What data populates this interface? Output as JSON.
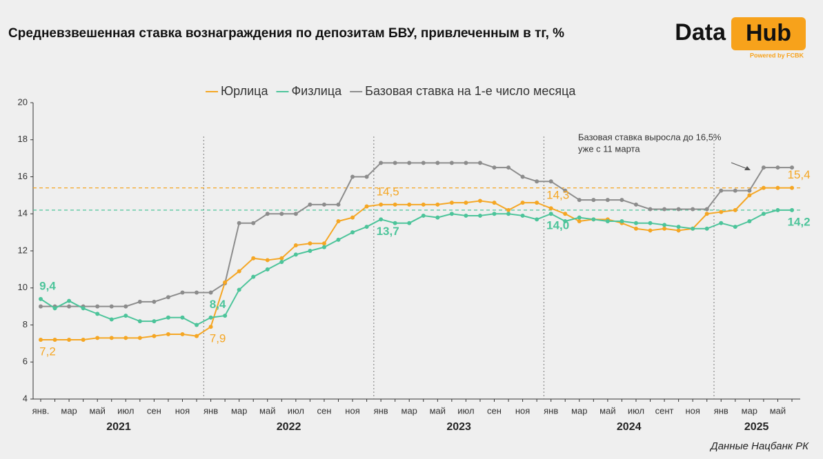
{
  "chart_data": {
    "type": "line",
    "title": "Средневзвешенная ставка вознаграждения по депозитам БВУ, привлеченным в тг, %",
    "logo": {
      "left": "Data",
      "right": "Hub",
      "tagline": "Powered by FCBK"
    },
    "source": "Данные Нацбанк РК",
    "annotation": [
      "Базовая ставка выросла до 16,5%",
      "уже с 11 марта"
    ],
    "categories": [
      "янв.",
      null,
      "мар",
      null,
      "май",
      null,
      "июл",
      null,
      "сен",
      null,
      "ноя",
      null,
      "янв",
      null,
      "мар",
      null,
      "май",
      null,
      "июл",
      null,
      "сен",
      null,
      "ноя",
      null,
      "янв",
      null,
      "мар",
      null,
      "май",
      null,
      "июл",
      null,
      "сен",
      null,
      "ноя",
      null,
      "янв",
      null,
      "мар",
      null,
      "май",
      null,
      "июл",
      null,
      "сент",
      null,
      "ноя",
      null,
      "янв",
      null,
      "мар",
      null,
      "май",
      null
    ],
    "years": [
      "2021",
      "2022",
      "2023",
      "2024",
      "2025"
    ],
    "ylim": [
      4,
      20
    ],
    "yticks": [
      4,
      6,
      8,
      10,
      12,
      14,
      16,
      18,
      20
    ],
    "series": [
      {
        "name": "Юрлица",
        "color": "#f5a623",
        "values": [
          7.2,
          7.2,
          7.2,
          7.2,
          7.3,
          7.3,
          7.3,
          7.3,
          7.4,
          7.5,
          7.5,
          7.4,
          7.9,
          10.3,
          10.9,
          11.6,
          11.5,
          11.6,
          12.3,
          12.4,
          12.4,
          13.6,
          13.8,
          14.4,
          14.5,
          14.5,
          14.5,
          14.5,
          14.5,
          14.6,
          14.6,
          14.7,
          14.6,
          14.2,
          14.6,
          14.6,
          14.3,
          14.0,
          13.6,
          13.7,
          13.7,
          13.5,
          13.2,
          13.1,
          13.2,
          13.1,
          13.2,
          14.0,
          14.1,
          14.2,
          15.0,
          15.4,
          15.4,
          15.4
        ],
        "value_labels": [
          "7,2",
          null,
          null,
          null,
          null,
          null,
          null,
          null,
          null,
          null,
          null,
          null,
          "7,9",
          null,
          null,
          null,
          null,
          null,
          null,
          null,
          null,
          null,
          null,
          null,
          "14,5",
          null,
          null,
          null,
          null,
          null,
          null,
          null,
          null,
          null,
          null,
          null,
          "14,3",
          null,
          null,
          null,
          null,
          null,
          null,
          null,
          null,
          null,
          null,
          null,
          null,
          null,
          null,
          null,
          null,
          "15,4"
        ]
      },
      {
        "name": "Физлица",
        "color": "#4cc49a",
        "values": [
          9.4,
          8.9,
          9.3,
          8.9,
          8.6,
          8.3,
          8.5,
          8.2,
          8.2,
          8.4,
          8.4,
          8.0,
          8.4,
          8.5,
          9.9,
          10.6,
          11.0,
          11.4,
          11.8,
          12.0,
          12.2,
          12.6,
          13.0,
          13.3,
          13.7,
          13.5,
          13.5,
          13.9,
          13.8,
          14.0,
          13.9,
          13.9,
          14.0,
          14.0,
          13.9,
          13.7,
          14.0,
          13.6,
          13.8,
          13.7,
          13.6,
          13.6,
          13.5,
          13.5,
          13.4,
          13.3,
          13.2,
          13.2,
          13.5,
          13.3,
          13.6,
          14.0,
          14.2,
          14.2
        ],
        "value_labels": [
          "9,4",
          null,
          null,
          null,
          null,
          null,
          null,
          null,
          null,
          null,
          null,
          null,
          "8,4",
          null,
          null,
          null,
          null,
          null,
          null,
          null,
          null,
          null,
          null,
          null,
          "13,7",
          null,
          null,
          null,
          null,
          null,
          null,
          null,
          null,
          null,
          null,
          null,
          "14,0",
          null,
          null,
          null,
          null,
          null,
          null,
          null,
          null,
          null,
          null,
          null,
          null,
          null,
          null,
          null,
          null,
          "14,2"
        ]
      },
      {
        "name": "Базовая ставка на 1-е число месяца",
        "color": "#8c8c8c",
        "values": [
          9.0,
          9.0,
          9.0,
          9.0,
          9.0,
          9.0,
          9.0,
          9.25,
          9.25,
          9.5,
          9.75,
          9.75,
          9.75,
          10.25,
          13.5,
          13.5,
          14.0,
          14.0,
          14.0,
          14.5,
          14.5,
          14.5,
          16.0,
          16.0,
          16.75,
          16.75,
          16.75,
          16.75,
          16.75,
          16.75,
          16.75,
          16.75,
          16.5,
          16.5,
          16.0,
          15.75,
          15.75,
          15.25,
          14.75,
          14.75,
          14.75,
          14.75,
          14.5,
          14.25,
          14.25,
          14.25,
          14.25,
          14.25,
          15.25,
          15.25,
          15.25,
          16.5,
          16.5,
          16.5
        ]
      }
    ]
  }
}
